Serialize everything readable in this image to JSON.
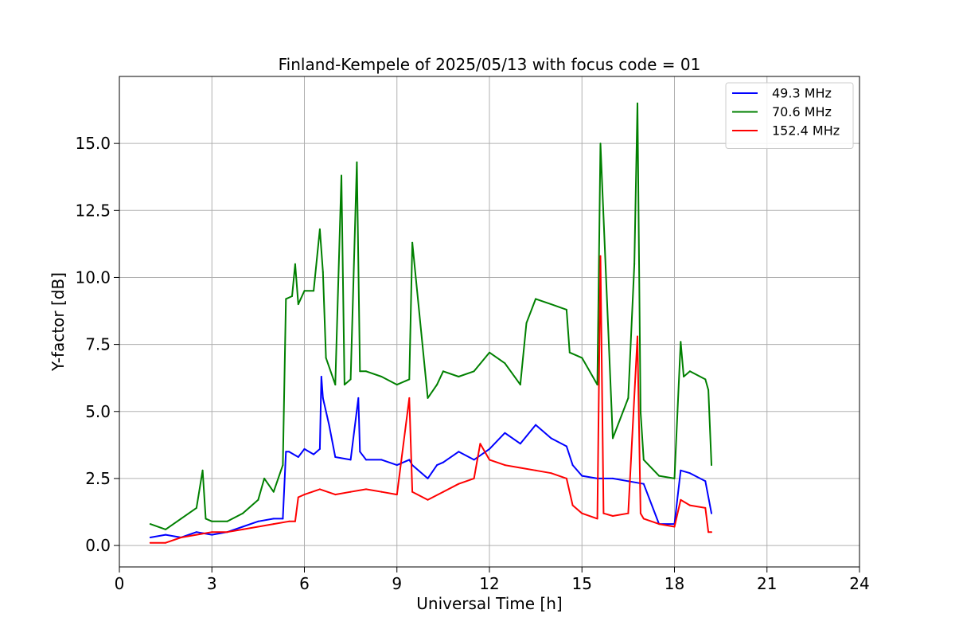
{
  "chart_data": {
    "type": "line",
    "title": "Finland-Kempele of 2025/05/13 with focus code = 01",
    "xlabel": "Universal Time [h]",
    "ylabel": "Y-factor [dB]",
    "xlim": [
      0,
      24
    ],
    "ylim": [
      -0.8,
      17.5
    ],
    "xticks": [
      0,
      3,
      6,
      9,
      12,
      15,
      18,
      21,
      24
    ],
    "xtick_labels": [
      "0",
      "3",
      "6",
      "9",
      "12",
      "15",
      "18",
      "21",
      "24"
    ],
    "yticks": [
      0.0,
      2.5,
      5.0,
      7.5,
      10.0,
      12.5,
      15.0
    ],
    "ytick_labels": [
      "0.0",
      "2.5",
      "5.0",
      "7.5",
      "10.0",
      "12.5",
      "15.0"
    ],
    "grid": true,
    "legend_position": "top-right",
    "series": [
      {
        "name": " 49.3 MHz",
        "color": "#0000ff",
        "x": [
          1.0,
          1.5,
          2.0,
          2.5,
          3.0,
          3.5,
          4.0,
          4.5,
          5.0,
          5.3,
          5.4,
          5.5,
          5.8,
          6.0,
          6.3,
          6.5,
          6.55,
          6.6,
          6.8,
          7.0,
          7.5,
          7.75,
          7.8,
          8.0,
          8.5,
          9.0,
          9.4,
          9.5,
          10.0,
          10.3,
          10.5,
          11.0,
          11.5,
          12.0,
          12.5,
          13.0,
          13.5,
          14.0,
          14.5,
          14.7,
          15.0,
          15.5,
          16.0,
          16.5,
          17.0,
          17.5,
          18.0,
          18.2,
          18.5,
          19.0,
          19.2
        ],
        "y": [
          0.3,
          0.4,
          0.3,
          0.5,
          0.4,
          0.5,
          0.7,
          0.9,
          1.0,
          1.0,
          3.5,
          3.5,
          3.3,
          3.6,
          3.4,
          3.6,
          6.3,
          5.5,
          4.5,
          3.3,
          3.2,
          5.5,
          3.5,
          3.2,
          3.2,
          3.0,
          3.2,
          3.0,
          2.5,
          3.0,
          3.1,
          3.5,
          3.2,
          3.6,
          4.2,
          3.8,
          4.5,
          4.0,
          3.7,
          3.0,
          2.6,
          2.5,
          2.5,
          2.4,
          2.3,
          0.8,
          0.8,
          2.8,
          2.7,
          2.4,
          1.2
        ]
      },
      {
        "name": " 70.6 MHz",
        "color": "#008000",
        "x": [
          1.0,
          1.5,
          2.0,
          2.5,
          2.7,
          2.8,
          3.0,
          3.5,
          4.0,
          4.5,
          4.7,
          5.0,
          5.3,
          5.4,
          5.6,
          5.7,
          5.8,
          6.0,
          6.3,
          6.5,
          6.6,
          6.7,
          7.0,
          7.2,
          7.3,
          7.5,
          7.7,
          7.8,
          8.0,
          8.5,
          9.0,
          9.4,
          9.5,
          10.0,
          10.3,
          10.5,
          11.0,
          11.5,
          12.0,
          12.5,
          13.0,
          13.2,
          13.5,
          14.0,
          14.5,
          14.6,
          15.0,
          15.5,
          15.6,
          16.0,
          16.5,
          16.7,
          16.8,
          16.9,
          17.0,
          17.5,
          18.0,
          18.2,
          18.3,
          18.5,
          19.0,
          19.1,
          19.2
        ],
        "y": [
          0.8,
          0.6,
          1.0,
          1.4,
          2.8,
          1.0,
          0.9,
          0.9,
          1.2,
          1.7,
          2.5,
          2.0,
          3.0,
          9.2,
          9.3,
          10.5,
          9.0,
          9.5,
          9.5,
          11.8,
          10.2,
          7.0,
          6.0,
          13.8,
          6.0,
          6.2,
          14.3,
          6.5,
          6.5,
          6.3,
          6.0,
          6.2,
          11.3,
          5.5,
          6.0,
          6.5,
          6.3,
          6.5,
          7.2,
          6.8,
          6.0,
          8.3,
          9.2,
          9.0,
          8.8,
          7.2,
          7.0,
          6.0,
          15.0,
          4.0,
          5.5,
          10.5,
          16.5,
          5.0,
          3.2,
          2.6,
          2.5,
          7.6,
          6.3,
          6.5,
          6.2,
          5.8,
          3.0
        ]
      },
      {
        "name": "152.4 MHz",
        "color": "#ff0000",
        "x": [
          1.0,
          1.5,
          2.0,
          2.5,
          3.0,
          3.5,
          4.0,
          4.5,
          5.0,
          5.5,
          5.7,
          5.8,
          6.0,
          6.5,
          7.0,
          7.5,
          8.0,
          8.5,
          9.0,
          9.4,
          9.5,
          10.0,
          10.5,
          11.0,
          11.5,
          11.7,
          12.0,
          12.5,
          13.0,
          13.5,
          14.0,
          14.5,
          14.7,
          15.0,
          15.5,
          15.6,
          15.7,
          16.0,
          16.5,
          16.8,
          16.9,
          17.0,
          17.5,
          18.0,
          18.2,
          18.5,
          19.0,
          19.1,
          19.2
        ],
        "y": [
          0.1,
          0.1,
          0.3,
          0.4,
          0.5,
          0.5,
          0.6,
          0.7,
          0.8,
          0.9,
          0.9,
          1.8,
          1.9,
          2.1,
          1.9,
          2.0,
          2.1,
          2.0,
          1.9,
          5.5,
          2.0,
          1.7,
          2.0,
          2.3,
          2.5,
          3.8,
          3.2,
          3.0,
          2.9,
          2.8,
          2.7,
          2.5,
          1.5,
          1.2,
          1.0,
          10.8,
          1.2,
          1.1,
          1.2,
          7.8,
          1.2,
          1.0,
          0.8,
          0.7,
          1.7,
          1.5,
          1.4,
          0.5,
          0.5
        ]
      }
    ]
  }
}
